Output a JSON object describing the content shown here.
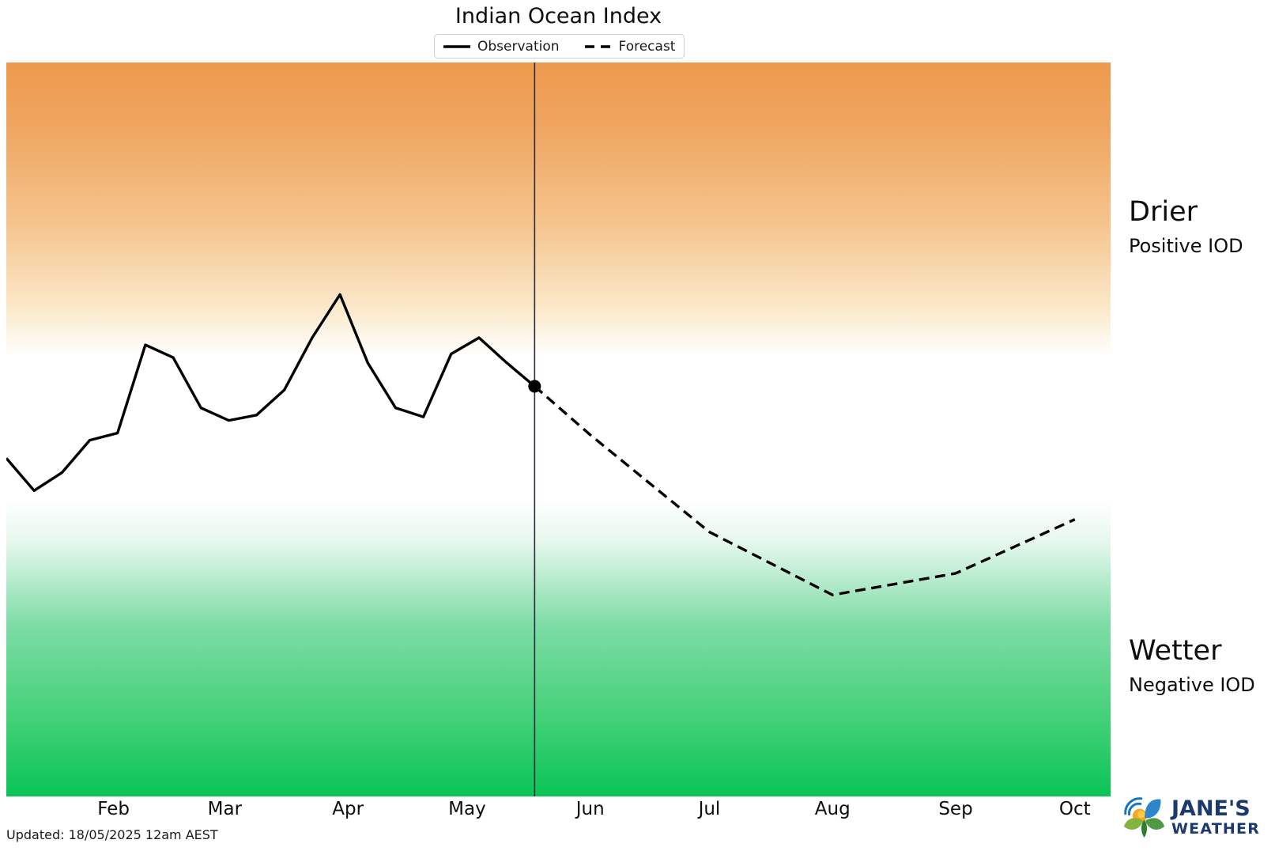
{
  "title": "Indian Ocean Index",
  "legend": {
    "observation_label": "Observation",
    "forecast_label": "Forecast"
  },
  "annotations": {
    "drier_title": "Drier",
    "drier_subtitle": "Positive IOD",
    "wetter_title": "Wetter",
    "wetter_subtitle": "Negative IOD"
  },
  "footer": {
    "updated_text": "Updated: 18/05/2025 12am AEST"
  },
  "logo": {
    "line1": "JANE'S",
    "line2": "WEATHER",
    "icon": "janes-weather-sun-leaves-logo",
    "navy": "#1C3A6E"
  },
  "colors": {
    "observation_line": "#000000",
    "forecast_line": "#000000",
    "today_line": "#2B2B3E",
    "marker_dot": "#000000",
    "drier_band_top": "#ED9A4D",
    "wetter_band_bottom": "#0AC456",
    "legend_border": "#CFCFCF"
  },
  "chart_data": {
    "type": "line",
    "title": "Indian Ocean Index",
    "x_axis": {
      "unit": "day_of_year_2025",
      "range_days": [
        5,
        283
      ],
      "tick_labels": [
        "Feb",
        "Mar",
        "Apr",
        "May",
        "Jun",
        "Jul",
        "Aug",
        "Sep",
        "Oct"
      ],
      "tick_days": [
        32,
        60,
        91,
        121,
        152,
        182,
        213,
        244,
        274
      ],
      "gridlines": false
    },
    "y_axis": {
      "range": [
        -2.05,
        2.03
      ],
      "thresholds": {
        "positive_iod": 0.4,
        "negative_iod": -0.4
      },
      "tick_labels_visible": false,
      "gridlines": false
    },
    "series": [
      {
        "name": "Observation",
        "style": "solid",
        "days": [
          5,
          12,
          19,
          26,
          33,
          40,
          47,
          54,
          61,
          68,
          75,
          82,
          89,
          96,
          103,
          110,
          117,
          124,
          131,
          138
        ],
        "values": [
          -0.17,
          -0.35,
          -0.25,
          -0.07,
          -0.03,
          0.46,
          0.39,
          0.11,
          0.04,
          0.07,
          0.21,
          0.5,
          0.74,
          0.36,
          0.11,
          0.06,
          0.41,
          0.5,
          0.36,
          0.23
        ]
      },
      {
        "name": "Forecast",
        "style": "dashed",
        "days": [
          138,
          152,
          182,
          213,
          244,
          274
        ],
        "values": [
          0.23,
          -0.04,
          -0.58,
          -0.93,
          -0.81,
          -0.51
        ]
      }
    ],
    "today_marker": {
      "day": 138,
      "value": 0.23
    },
    "legend_position": "top-center"
  }
}
